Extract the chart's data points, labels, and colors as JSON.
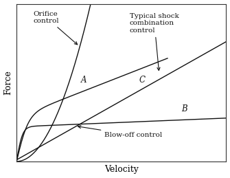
{
  "title": "",
  "xlabel": "Velocity",
  "ylabel": "Force",
  "bg_color": "#ffffff",
  "curve_color": "#111111",
  "label_A": "A",
  "label_B": "B",
  "label_C": "C",
  "label_orifice": "Orifice\ncontrol",
  "label_blowoff": "Blow-off control",
  "label_typical": "Typical shock\ncombination\ncontrol",
  "xlim": [
    0,
    1
  ],
  "ylim": [
    0,
    1
  ],
  "figsize": [
    3.35,
    2.59
  ],
  "dpi": 100
}
